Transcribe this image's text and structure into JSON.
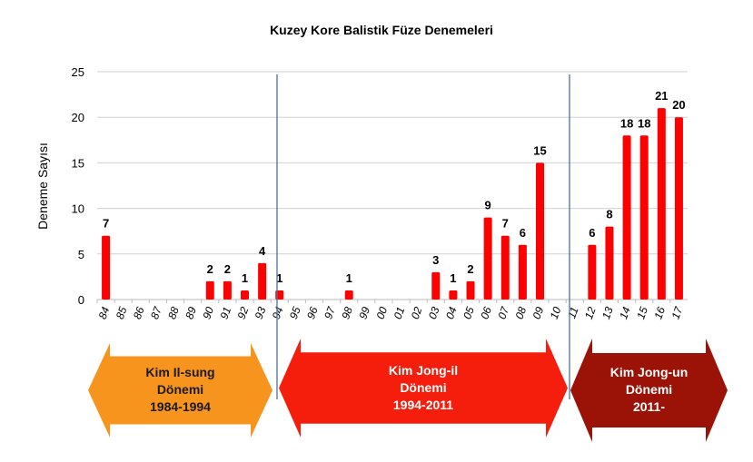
{
  "chart_data": {
    "type": "bar",
    "title": "Kuzey Kore Balistik Füze Denemeleri",
    "ylabel": "Deneme Sayısı",
    "xlabel": "",
    "ylim": [
      0,
      25
    ],
    "yticks": [
      0,
      5,
      10,
      15,
      20,
      25
    ],
    "grid": true,
    "categories": [
      "84",
      "85",
      "86",
      "87",
      "88",
      "89",
      "90",
      "91",
      "92",
      "93",
      "94",
      "95",
      "96",
      "97",
      "98",
      "99",
      "00",
      "01",
      "02",
      "03",
      "04",
      "05",
      "06",
      "07",
      "08",
      "09",
      "10",
      "11",
      "12",
      "13",
      "14",
      "15",
      "16",
      "17"
    ],
    "values": [
      7,
      0,
      0,
      0,
      0,
      0,
      2,
      2,
      1,
      4,
      1,
      0,
      0,
      0,
      1,
      0,
      0,
      0,
      0,
      3,
      1,
      2,
      9,
      7,
      6,
      15,
      0,
      0,
      6,
      8,
      18,
      18,
      21,
      20
    ],
    "bar_color": "#ff0000",
    "divider_color": "#4f6f99",
    "eras": [
      {
        "label": "Kim Il-sung\nDönemi\n1984-1994",
        "color": "#f7941d",
        "text_color": "#1a1a1a"
      },
      {
        "label": "Kim Jong-il\nDönemi\n1994-2011",
        "color": "#f51d0c",
        "text_color": "#ffffff"
      },
      {
        "label": "Kim Jong-un\nDönemi\n2011-",
        "color": "#9b1207",
        "text_color": "#ffffff"
      }
    ]
  }
}
